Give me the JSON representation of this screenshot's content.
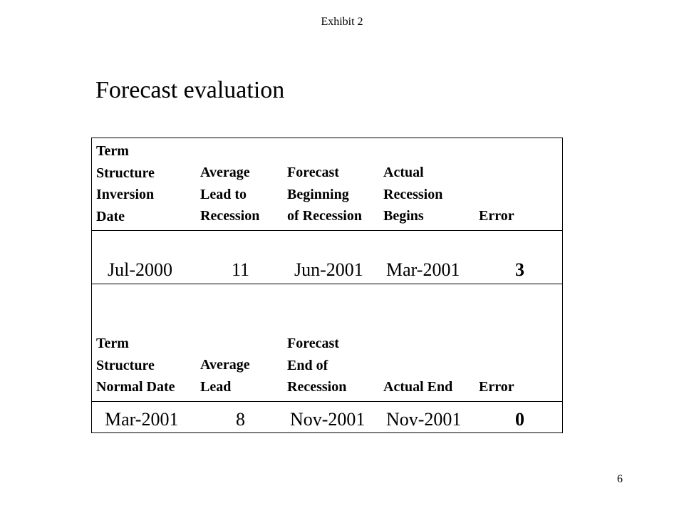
{
  "header": {
    "exhibit": "Exhibit 2"
  },
  "title": "Forecast evaluation",
  "table": {
    "top_header": [
      [
        "Term",
        "Structure",
        "Inversion",
        "Date"
      ],
      [
        "Average",
        "Lead to",
        "Recession"
      ],
      [
        "Forecast",
        "Beginning",
        "of Recession"
      ],
      [
        "Actual",
        "Recession",
        "Begins"
      ],
      [
        "Error"
      ]
    ],
    "top_row": [
      "Jul-2000",
      "11",
      "Jun-2001",
      "Mar-2001",
      "3"
    ],
    "bottom_header": [
      [
        "Term",
        "Structure",
        "Normal Date"
      ],
      [
        "Average",
        "Lead"
      ],
      [
        "Forecast",
        "End of",
        "Recession"
      ],
      [
        "Actual End"
      ],
      [
        "Error"
      ]
    ],
    "bottom_row": [
      "Mar-2001",
      "8",
      "Nov-2001",
      "Nov-2001",
      "0"
    ]
  },
  "footer": {
    "page_number": "6"
  }
}
